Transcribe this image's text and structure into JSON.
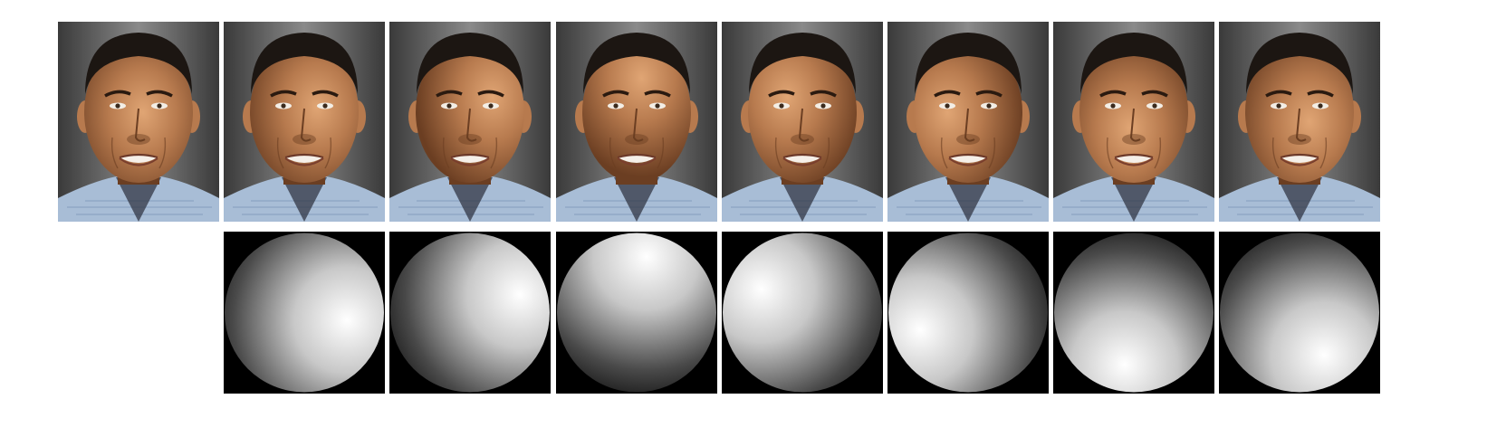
{
  "figure": {
    "input_face": {
      "label_icon": "face-photo-icon",
      "shade": 1.0
    },
    "relit_faces": [
      {
        "light_angle_deg": -10,
        "elevation": 0.3
      },
      {
        "light_angle_deg": 20,
        "elevation": 0.55
      },
      {
        "light_angle_deg": 80,
        "elevation": 0.65
      },
      {
        "light_angle_deg": 150,
        "elevation": 0.4
      },
      {
        "light_angle_deg": 200,
        "elevation": 0.5
      },
      {
        "light_angle_deg": 260,
        "elevation": 0.55
      },
      {
        "light_angle_deg": 300,
        "elevation": 0.45
      }
    ],
    "sphere_icon": "shaded-sphere-icon",
    "colors": {
      "background": "#ffffff",
      "sphere_background": "#000000",
      "skin": "#b77a4e",
      "skin_dark": "#6b3e22",
      "hair": "#1c1612",
      "shirt": "#a8bdd6",
      "shirt_line": "#5f7ea8"
    }
  }
}
